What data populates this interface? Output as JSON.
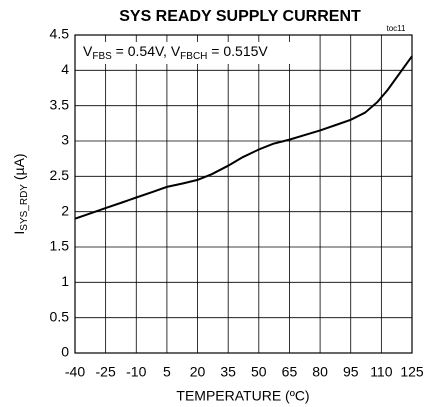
{
  "chart_data": {
    "type": "line",
    "title": "SYS READY SUPPLY CURRENT",
    "figure_id": "toc11",
    "annotation": [
      {
        "text": "V"
      },
      {
        "text": "FBS",
        "sub": true
      },
      {
        "text": " = 0.54V, V"
      },
      {
        "text": "FBCH",
        "sub": true
      },
      {
        "text": " = 0.515V"
      }
    ],
    "ylabel": [
      {
        "text": "I"
      },
      {
        "text": "SYS_RDY",
        "sub": true
      },
      {
        "text": " (µA)"
      }
    ],
    "xlabel": "TEMPERATURE (ºC)",
    "x": [
      -40,
      -32,
      -25,
      -17,
      -10,
      -2,
      5,
      13,
      20,
      27,
      35,
      42,
      50,
      57,
      65,
      72,
      80,
      87,
      95,
      102,
      108,
      113,
      118,
      125
    ],
    "series": [
      {
        "name": "ISYS_RDY",
        "color": "#000000",
        "values": [
          1.9,
          1.98,
          2.05,
          2.13,
          2.2,
          2.28,
          2.35,
          2.4,
          2.45,
          2.53,
          2.65,
          2.77,
          2.88,
          2.96,
          3.02,
          3.08,
          3.15,
          3.22,
          3.3,
          3.4,
          3.55,
          3.72,
          3.92,
          4.2
        ]
      }
    ],
    "xlim": [
      -40,
      125
    ],
    "xticks": [
      -40,
      -25,
      -10,
      5,
      20,
      35,
      50,
      65,
      80,
      95,
      110,
      125
    ],
    "ylim": [
      0,
      4.5
    ],
    "yticks": [
      0,
      0.5,
      1,
      1.5,
      2,
      2.5,
      3,
      3.5,
      4,
      4.5
    ],
    "grid": true
  }
}
